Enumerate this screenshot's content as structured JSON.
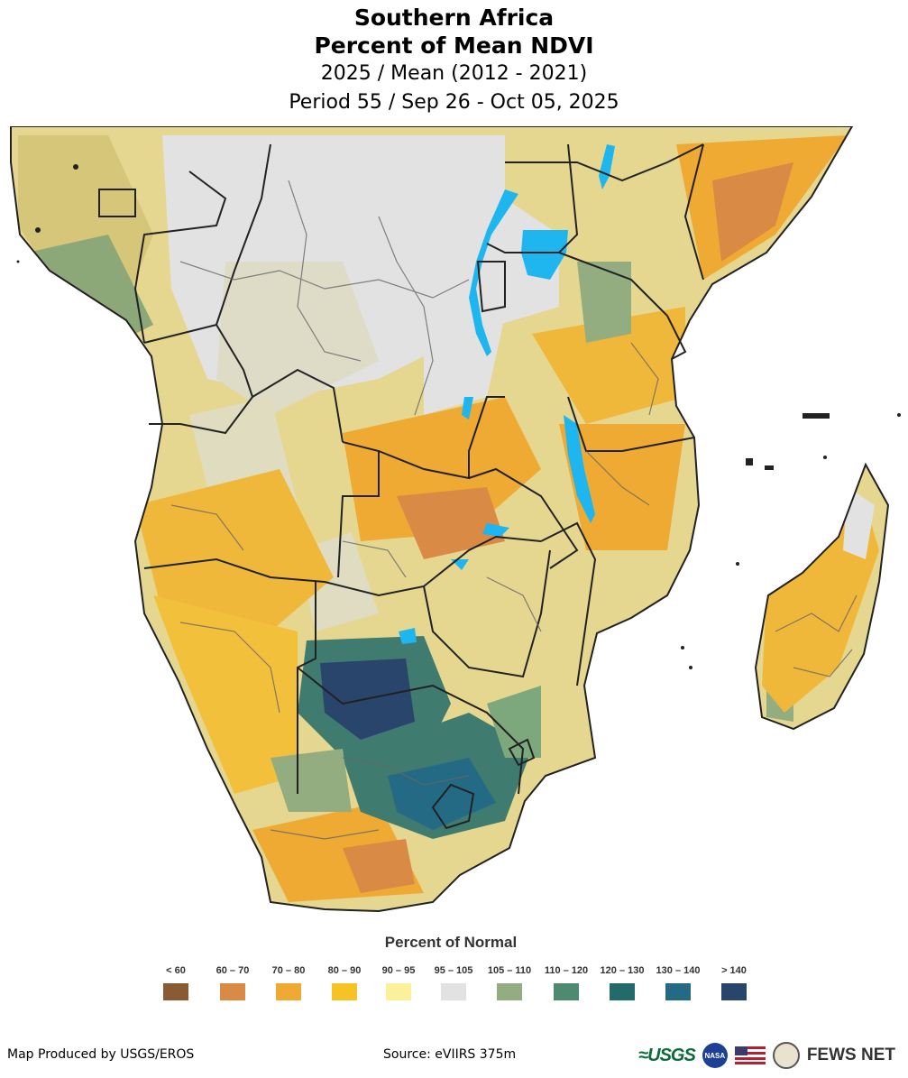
{
  "header": {
    "title": "Southern Africa",
    "subtitle": "Percent of Mean NDVI",
    "comparison": "2025 / Mean (2012 - 2021)",
    "period": "Period 55 / Sep 26 - Oct 05, 2025"
  },
  "legend": {
    "title": "Percent of Normal",
    "classes": [
      {
        "label": "< 60",
        "color": "#8a5a33"
      },
      {
        "label": "60 – 70",
        "color": "#d98a44"
      },
      {
        "label": "70 – 80",
        "color": "#eeaa33"
      },
      {
        "label": "80 – 90",
        "color": "#f6c324"
      },
      {
        "label": "90 – 95",
        "color": "#fbf19a"
      },
      {
        "label": "95 – 105",
        "color": "#e2e2e2"
      },
      {
        "label": "105 – 110",
        "color": "#93ad80"
      },
      {
        "label": "110 – 120",
        "color": "#4e8a70"
      },
      {
        "label": "120 – 130",
        "color": "#236b6b"
      },
      {
        "label": "130 – 140",
        "color": "#256a84"
      },
      {
        "label": "> 140",
        "color": "#2a456c"
      }
    ]
  },
  "map": {
    "water_color": "#1fb6f0",
    "border_color": "#222222"
  },
  "footer": {
    "producer": "Map Produced by USGS/EROS",
    "source": "Source: eVIIRS 375m",
    "logos": {
      "usgs": "≈USGS",
      "nasa": "NASA",
      "fews": "FEWS NET"
    }
  }
}
